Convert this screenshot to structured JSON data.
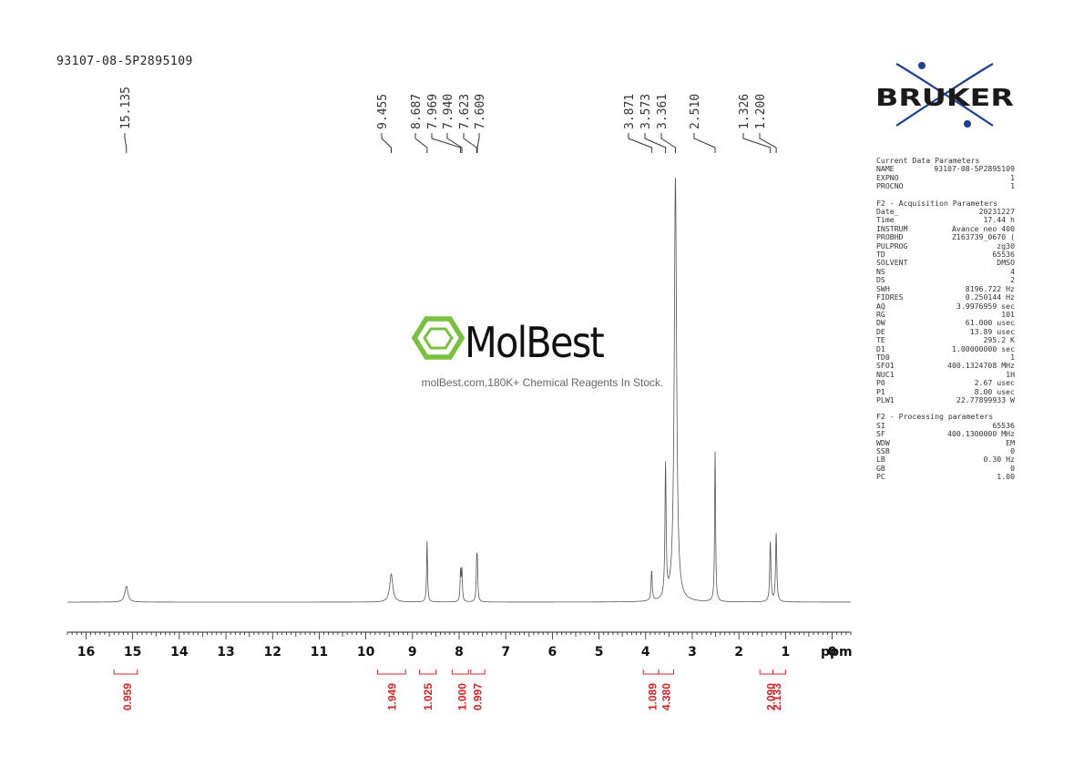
{
  "header": {
    "sample_id": "93107-08-5P2895109"
  },
  "brand": {
    "bruker_label": "BRUKER",
    "bruker_color": "#1f3f8f",
    "molbest_label": "MolBest",
    "molbest_tagline": "molBest.com,180K+ Chemical Reagents In Stock.",
    "molbest_color": "#7ac142"
  },
  "chart_data": {
    "type": "line",
    "title": "",
    "xlabel": "ppm",
    "ylabel": "",
    "xlim": [
      16.4,
      -0.4
    ],
    "axis_reversed": true,
    "x_ticks": [
      16,
      15,
      14,
      13,
      12,
      11,
      10,
      9,
      8,
      7,
      6,
      5,
      4,
      3,
      2,
      1,
      0
    ],
    "x_tick_labels": [
      "16",
      "15",
      "14",
      "13",
      "12",
      "11",
      "10",
      "9",
      "8",
      "7",
      "6",
      "5",
      "4",
      "3",
      "2",
      "1",
      "0"
    ],
    "grid": false,
    "legend": "none",
    "line_color": "#555555",
    "integral_color": "#d0262a",
    "peaks": [
      {
        "ppm": 15.135,
        "label": "15.135",
        "height": 0.036,
        "width": 0.04
      },
      {
        "ppm": 9.455,
        "label": "9.455",
        "height": 0.064,
        "width": 0.04
      },
      {
        "ppm": 8.687,
        "label": "8.687",
        "height": 0.137,
        "width": 0.012
      },
      {
        "ppm": 7.969,
        "label": "7.969",
        "height": 0.069,
        "width": 0.012
      },
      {
        "ppm": 7.94,
        "label": "7.940",
        "height": 0.069,
        "width": 0.012
      },
      {
        "ppm": 7.623,
        "label": "7.623",
        "height": 0.074,
        "width": 0.012
      },
      {
        "ppm": 7.609,
        "label": "7.609",
        "height": 0.074,
        "width": 0.012
      },
      {
        "ppm": 3.871,
        "label": "3.871",
        "height": 0.068,
        "width": 0.015
      },
      {
        "ppm": 3.573,
        "label": "3.573",
        "height": 0.3,
        "width": 0.015
      },
      {
        "ppm": 3.361,
        "label": "3.361",
        "height": 0.96,
        "width": 0.03
      },
      {
        "ppm": 2.51,
        "label": "2.510",
        "height": 0.34,
        "width": 0.012
      },
      {
        "ppm": 1.326,
        "label": "1.326",
        "height": 0.135,
        "width": 0.015
      },
      {
        "ppm": 1.2,
        "label": "1.200",
        "height": 0.155,
        "width": 0.015
      }
    ],
    "integrals": [
      {
        "center": 15.135,
        "from": 15.4,
        "to": 14.9,
        "value": "0.959"
      },
      {
        "center": 9.455,
        "from": 9.75,
        "to": 9.15,
        "value": "1.949"
      },
      {
        "center": 8.687,
        "from": 8.85,
        "to": 8.5,
        "value": "1.025"
      },
      {
        "center": 7.954,
        "from": 8.15,
        "to": 7.8,
        "value": "1.000"
      },
      {
        "center": 7.616,
        "from": 7.75,
        "to": 7.45,
        "value": "0.997"
      },
      {
        "center": 3.871,
        "from": 4.05,
        "to": 3.72,
        "value": "1.089"
      },
      {
        "center": 3.573,
        "from": 3.72,
        "to": 3.4,
        "value": "4.380"
      },
      {
        "center": 1.326,
        "from": 1.55,
        "to": 1.27,
        "value": "2.090"
      },
      {
        "center": 1.2,
        "from": 1.27,
        "to": 1.0,
        "value": "2.133"
      }
    ]
  },
  "parameters": {
    "current": {
      "title": "Current Data Parameters",
      "rows": [
        {
          "k": "NAME",
          "v": "93107-08-5P2895109"
        },
        {
          "k": "EXPNO",
          "v": "1"
        },
        {
          "k": "PROCNO",
          "v": "1"
        }
      ]
    },
    "acquisition": {
      "title": "F2 - Acquisition Parameters",
      "rows": [
        {
          "k": "Date_",
          "v": "20231227"
        },
        {
          "k": "Time",
          "v": "17.44 h"
        },
        {
          "k": "INSTRUM",
          "v": "Avance neo 400"
        },
        {
          "k": "PROBHD",
          "v": "Z163739_0670 ("
        },
        {
          "k": "PULPROG",
          "v": "zg30"
        },
        {
          "k": "TD",
          "v": "65536"
        },
        {
          "k": "SOLVENT",
          "v": "DMSO"
        },
        {
          "k": "NS",
          "v": "4"
        },
        {
          "k": "DS",
          "v": "2"
        },
        {
          "k": "SWH",
          "v": "8196.722 Hz"
        },
        {
          "k": "FIDRES",
          "v": "0.250144 Hz"
        },
        {
          "k": "AQ",
          "v": "3.9976959 sec"
        },
        {
          "k": "RG",
          "v": "101"
        },
        {
          "k": "DW",
          "v": "61.000 usec"
        },
        {
          "k": "DE",
          "v": "13.89 usec"
        },
        {
          "k": "TE",
          "v": "295.2 K"
        },
        {
          "k": "D1",
          "v": "1.00000000 sec"
        },
        {
          "k": "TD0",
          "v": "1"
        },
        {
          "k": "SFO1",
          "v": "400.1324708 MHz"
        },
        {
          "k": "NUC1",
          "v": "1H"
        },
        {
          "k": "P0",
          "v": "2.67 usec"
        },
        {
          "k": "P1",
          "v": "8.00 usec"
        },
        {
          "k": "PLW1",
          "v": "22.77899933 W"
        }
      ]
    },
    "processing": {
      "title": "F2 - Processing parameters",
      "rows": [
        {
          "k": "SI",
          "v": "65536"
        },
        {
          "k": "SF",
          "v": "400.1300000 MHz"
        },
        {
          "k": "WDW",
          "v": "EM"
        },
        {
          "k": "SSB",
          "v": "0"
        },
        {
          "k": "LB",
          "v": "0.30 Hz"
        },
        {
          "k": "GB",
          "v": "0"
        },
        {
          "k": "PC",
          "v": "1.00"
        }
      ]
    }
  }
}
